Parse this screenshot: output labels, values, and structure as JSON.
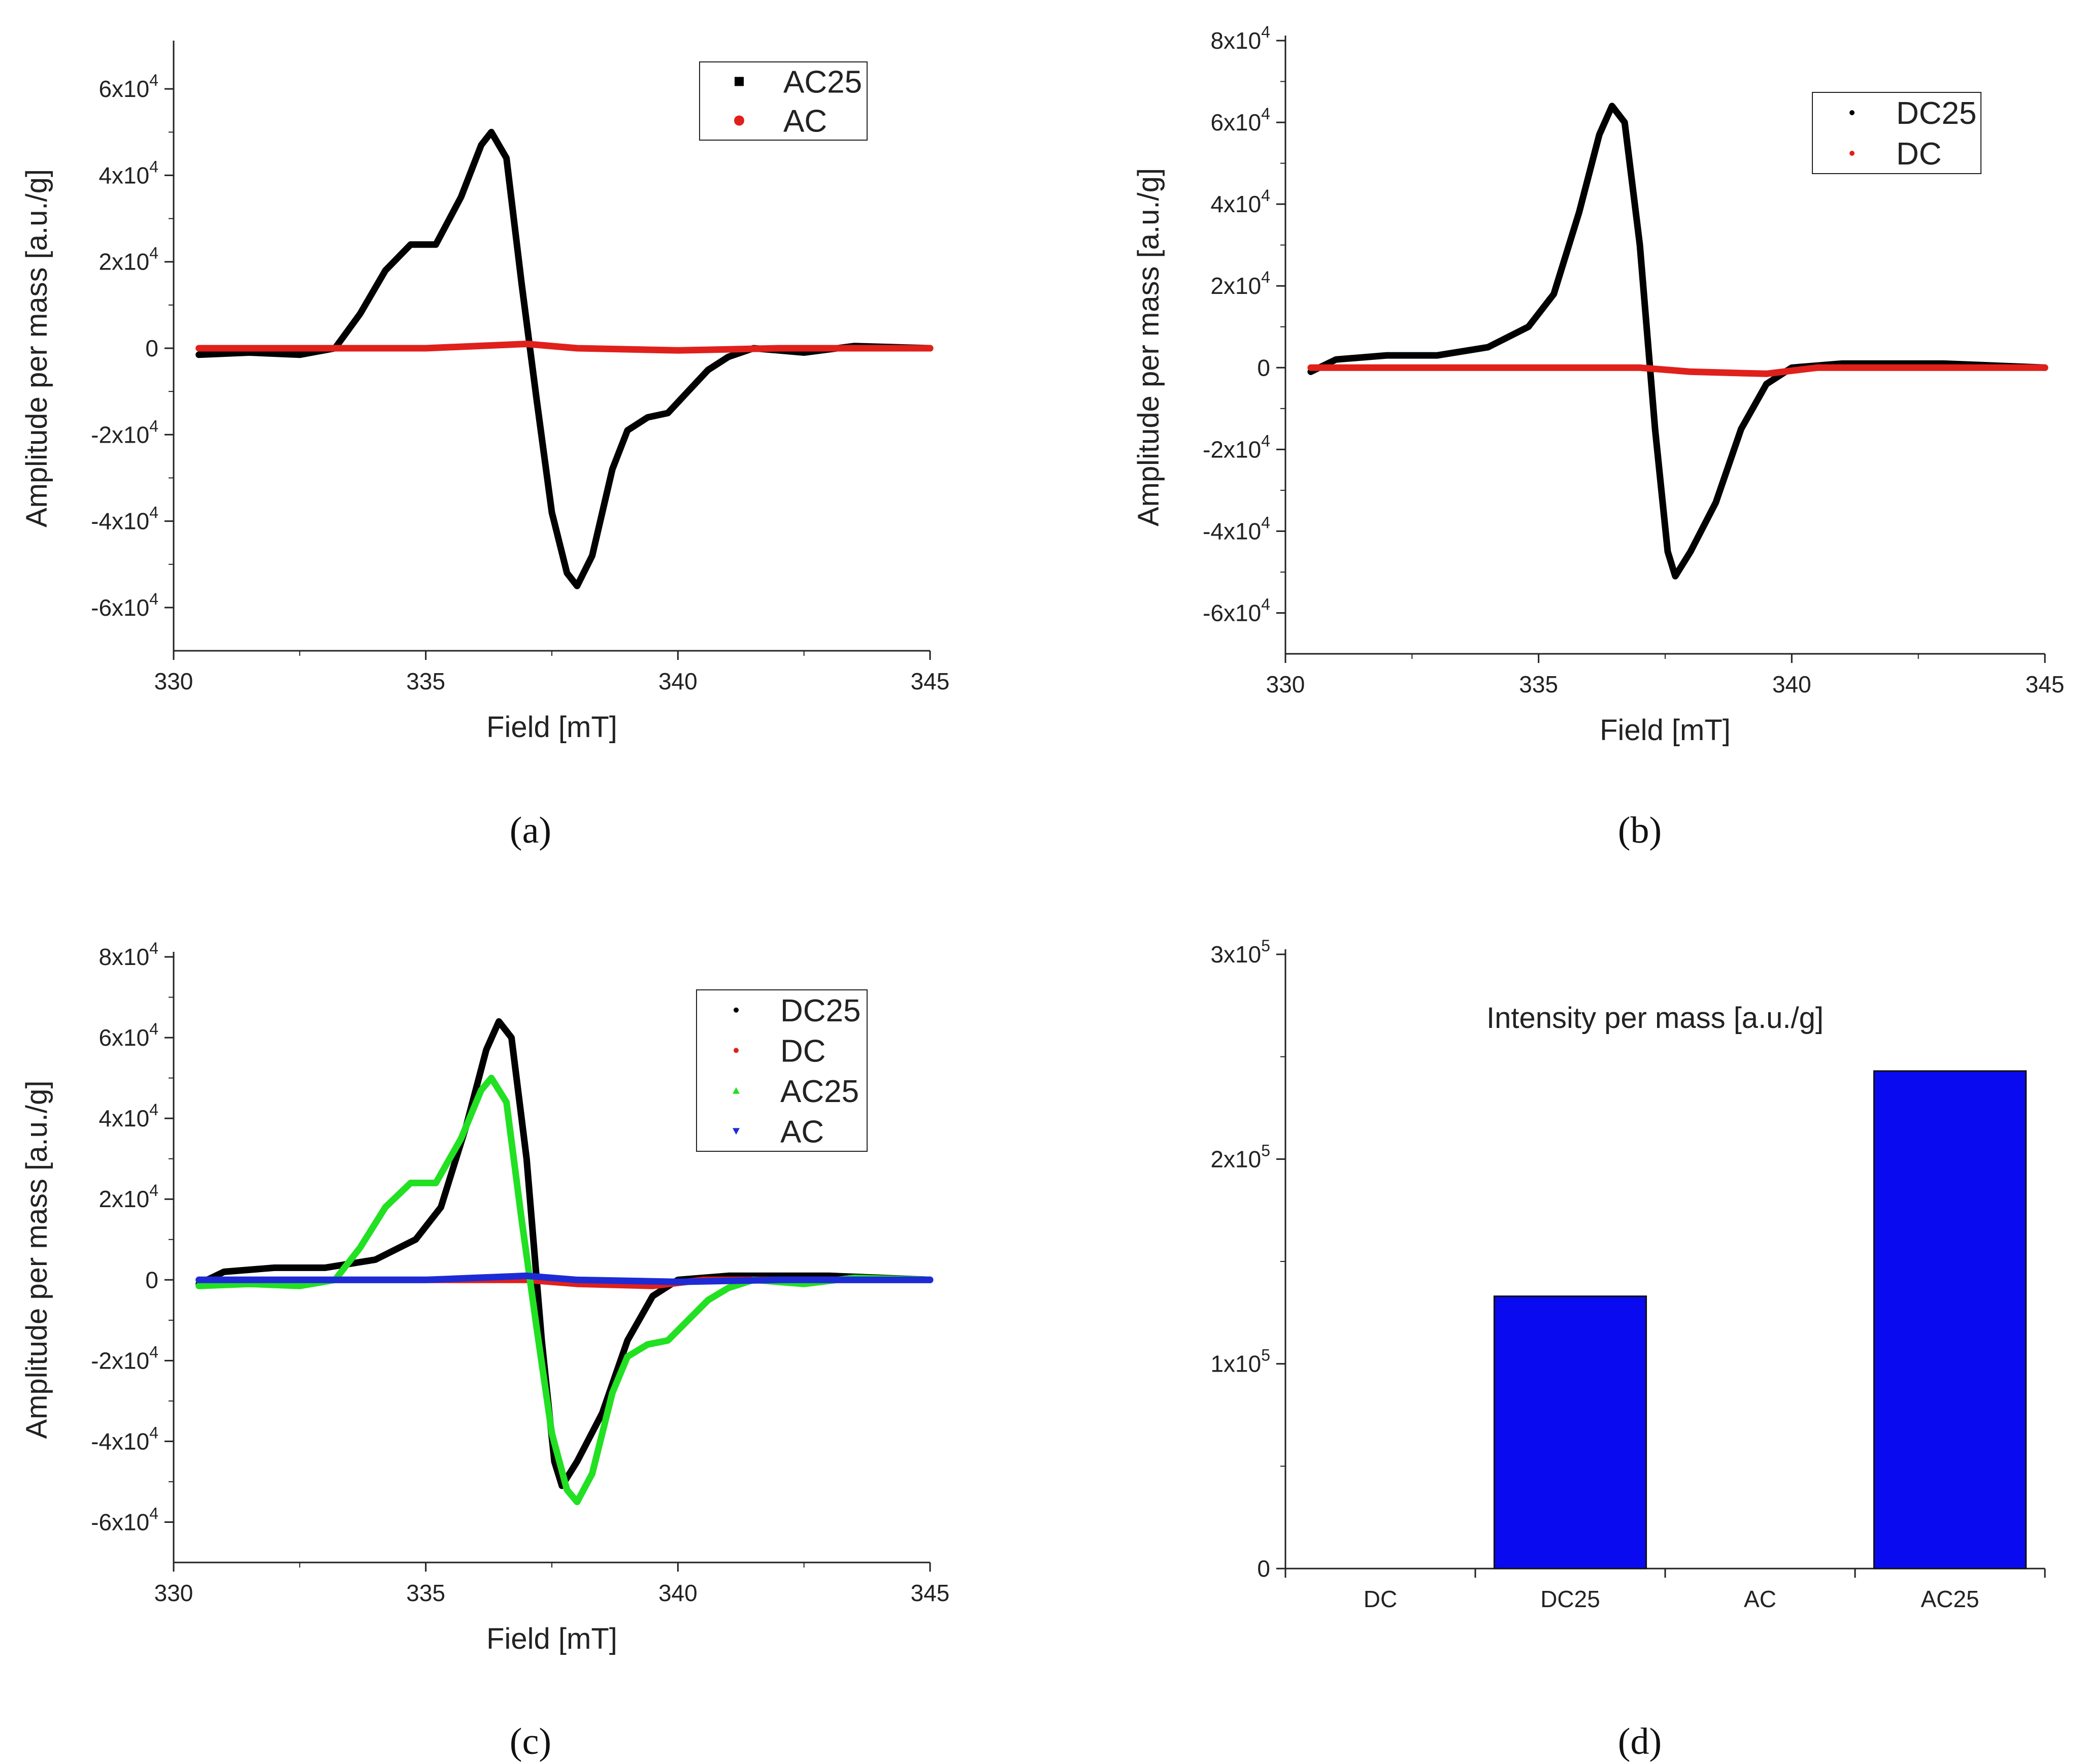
{
  "panels": [
    {
      "caption": "(a)",
      "chart_data": {
        "type": "line",
        "xlabel": "Field [mT]",
        "ylabel": "Amplitude per mass [a.u./g]",
        "xlim": [
          330,
          345
        ],
        "ylim": [
          -70000,
          70000
        ],
        "xticks": [
          "330",
          "335",
          "340",
          "345"
        ],
        "yticks": [
          {
            "value": 60000,
            "mant": "6x10",
            "exp": "4"
          },
          {
            "value": 40000,
            "mant": "4x10",
            "exp": "4"
          },
          {
            "value": 20000,
            "mant": "2x10",
            "exp": "4"
          },
          {
            "value": 0,
            "mant": "0",
            "exp": ""
          },
          {
            "value": -20000,
            "mant": "-2x10",
            "exp": "4"
          },
          {
            "value": -40000,
            "mant": "-4x10",
            "exp": "4"
          },
          {
            "value": -60000,
            "mant": "-6x10",
            "exp": "4"
          }
        ],
        "legend": "top-right",
        "series": [
          {
            "name": "AC25",
            "color": "#000000",
            "marker": "square",
            "points": [
              [
                330.5,
                -1500
              ],
              [
                331.5,
                -1000
              ],
              [
                332.5,
                -1500
              ],
              [
                333.2,
                0
              ],
              [
                333.7,
                8000
              ],
              [
                334.2,
                18000
              ],
              [
                334.7,
                24000
              ],
              [
                335.2,
                24000
              ],
              [
                335.7,
                35000
              ],
              [
                336.1,
                47000
              ],
              [
                336.3,
                50000
              ],
              [
                336.6,
                44000
              ],
              [
                336.9,
                15000
              ],
              [
                337.2,
                -12000
              ],
              [
                337.5,
                -38000
              ],
              [
                337.8,
                -52000
              ],
              [
                338.0,
                -55000
              ],
              [
                338.3,
                -48000
              ],
              [
                338.7,
                -28000
              ],
              [
                339.0,
                -19000
              ],
              [
                339.4,
                -16000
              ],
              [
                339.8,
                -15000
              ],
              [
                340.2,
                -10000
              ],
              [
                340.6,
                -5000
              ],
              [
                341.0,
                -2000
              ],
              [
                341.5,
                0
              ],
              [
                342.5,
                -1000
              ],
              [
                343.5,
                500
              ],
              [
                345,
                0
              ]
            ]
          },
          {
            "name": "AC",
            "color": "#e0201b",
            "marker": "circle",
            "points": [
              [
                330.5,
                0
              ],
              [
                333,
                0
              ],
              [
                335,
                0
              ],
              [
                336,
                500
              ],
              [
                337,
                1000
              ],
              [
                338,
                0
              ],
              [
                340,
                -500
              ],
              [
                342,
                0
              ],
              [
                345,
                0
              ]
            ]
          }
        ]
      }
    },
    {
      "caption": "(b)",
      "chart_data": {
        "type": "line",
        "xlabel": "Field [mT]",
        "ylabel": "Amplitude per mass [a.u./g]",
        "xlim": [
          330,
          345
        ],
        "ylim": [
          -70000,
          80000
        ],
        "xticks": [
          "330",
          "335",
          "340",
          "345"
        ],
        "yticks": [
          {
            "value": 80000,
            "mant": "8x10",
            "exp": "4"
          },
          {
            "value": 60000,
            "mant": "6x10",
            "exp": "4"
          },
          {
            "value": 40000,
            "mant": "4x10",
            "exp": "4"
          },
          {
            "value": 20000,
            "mant": "2x10",
            "exp": "4"
          },
          {
            "value": 0,
            "mant": "0",
            "exp": ""
          },
          {
            "value": -20000,
            "mant": "-2x10",
            "exp": "4"
          },
          {
            "value": -40000,
            "mant": "-4x10",
            "exp": "4"
          },
          {
            "value": -60000,
            "mant": "-6x10",
            "exp": "4"
          }
        ],
        "legend": "top-right",
        "series": [
          {
            "name": "DC25",
            "color": "#000000",
            "marker": "dot",
            "points": [
              [
                330.5,
                -1000
              ],
              [
                331,
                2000
              ],
              [
                332,
                3000
              ],
              [
                333,
                3000
              ],
              [
                334,
                5000
              ],
              [
                334.8,
                10000
              ],
              [
                335.3,
                18000
              ],
              [
                335.8,
                38000
              ],
              [
                336.2,
                57000
              ],
              [
                336.45,
                64000
              ],
              [
                336.7,
                60000
              ],
              [
                337.0,
                30000
              ],
              [
                337.3,
                -15000
              ],
              [
                337.55,
                -45000
              ],
              [
                337.7,
                -51000
              ],
              [
                338.0,
                -45000
              ],
              [
                338.5,
                -33000
              ],
              [
                339.0,
                -15000
              ],
              [
                339.5,
                -4000
              ],
              [
                340.0,
                0
              ],
              [
                341,
                1000
              ],
              [
                343,
                1000
              ],
              [
                345,
                0
              ]
            ]
          },
          {
            "name": "DC",
            "color": "#e0201b",
            "marker": "dot",
            "points": [
              [
                330.5,
                0
              ],
              [
                333,
                0
              ],
              [
                336,
                0
              ],
              [
                337,
                0
              ],
              [
                338,
                -1000
              ],
              [
                339.5,
                -1500
              ],
              [
                340.5,
                0
              ],
              [
                345,
                0
              ]
            ]
          }
        ]
      }
    },
    {
      "caption": "(c)",
      "chart_data": {
        "type": "line",
        "xlabel": "Field [mT]",
        "ylabel": "Amplitude per mass [a.u./g]",
        "xlim": [
          330,
          345
        ],
        "ylim": [
          -70000,
          80000
        ],
        "xticks": [
          "330",
          "335",
          "340",
          "345"
        ],
        "yticks": [
          {
            "value": 80000,
            "mant": "8x10",
            "exp": "4"
          },
          {
            "value": 60000,
            "mant": "6x10",
            "exp": "4"
          },
          {
            "value": 40000,
            "mant": "4x10",
            "exp": "4"
          },
          {
            "value": 20000,
            "mant": "2x10",
            "exp": "4"
          },
          {
            "value": 0,
            "mant": "0",
            "exp": ""
          },
          {
            "value": -20000,
            "mant": "-2x10",
            "exp": "4"
          },
          {
            "value": -40000,
            "mant": "-4x10",
            "exp": "4"
          },
          {
            "value": -60000,
            "mant": "-6x10",
            "exp": "4"
          }
        ],
        "legend": "top-right",
        "series": [
          {
            "name": "DC25",
            "color": "#000000",
            "marker": "dot",
            "points": [
              [
                330.5,
                -1000
              ],
              [
                331,
                2000
              ],
              [
                332,
                3000
              ],
              [
                333,
                3000
              ],
              [
                334,
                5000
              ],
              [
                334.8,
                10000
              ],
              [
                335.3,
                18000
              ],
              [
                335.8,
                38000
              ],
              [
                336.2,
                57000
              ],
              [
                336.45,
                64000
              ],
              [
                336.7,
                60000
              ],
              [
                337.0,
                30000
              ],
              [
                337.3,
                -15000
              ],
              [
                337.55,
                -45000
              ],
              [
                337.7,
                -51000
              ],
              [
                338.0,
                -45000
              ],
              [
                338.5,
                -33000
              ],
              [
                339.0,
                -15000
              ],
              [
                339.5,
                -4000
              ],
              [
                340.0,
                0
              ],
              [
                341,
                1000
              ],
              [
                343,
                1000
              ],
              [
                345,
                0
              ]
            ]
          },
          {
            "name": "DC",
            "color": "#e0201b",
            "marker": "dot",
            "points": [
              [
                330.5,
                0
              ],
              [
                333,
                0
              ],
              [
                336,
                0
              ],
              [
                337,
                0
              ],
              [
                338,
                -1000
              ],
              [
                339.5,
                -1500
              ],
              [
                340.5,
                0
              ],
              [
                345,
                0
              ]
            ]
          },
          {
            "name": "AC25",
            "color": "#22e022",
            "marker": "triangle-up",
            "points": [
              [
                330.5,
                -1500
              ],
              [
                331.5,
                -1000
              ],
              [
                332.5,
                -1500
              ],
              [
                333.2,
                0
              ],
              [
                333.7,
                8000
              ],
              [
                334.2,
                18000
              ],
              [
                334.7,
                24000
              ],
              [
                335.2,
                24000
              ],
              [
                335.7,
                35000
              ],
              [
                336.1,
                47000
              ],
              [
                336.3,
                50000
              ],
              [
                336.6,
                44000
              ],
              [
                336.9,
                15000
              ],
              [
                337.2,
                -12000
              ],
              [
                337.5,
                -38000
              ],
              [
                337.8,
                -52000
              ],
              [
                338.0,
                -55000
              ],
              [
                338.3,
                -48000
              ],
              [
                338.7,
                -28000
              ],
              [
                339.0,
                -19000
              ],
              [
                339.4,
                -16000
              ],
              [
                339.8,
                -15000
              ],
              [
                340.2,
                -10000
              ],
              [
                340.6,
                -5000
              ],
              [
                341.0,
                -2000
              ],
              [
                341.5,
                0
              ],
              [
                342.5,
                -1000
              ],
              [
                343.5,
                500
              ],
              [
                345,
                0
              ]
            ]
          },
          {
            "name": "AC",
            "color": "#1d2bd6",
            "marker": "triangle-down",
            "points": [
              [
                330.5,
                0
              ],
              [
                333,
                0
              ],
              [
                335,
                0
              ],
              [
                336,
                500
              ],
              [
                337,
                1000
              ],
              [
                338,
                0
              ],
              [
                340,
                -500
              ],
              [
                342,
                0
              ],
              [
                345,
                0
              ]
            ]
          }
        ]
      }
    },
    {
      "caption": "(d)",
      "chart_data": {
        "type": "bar",
        "title": "Intensity per mass [a.u./g]",
        "categories": [
          "DC",
          "DC25",
          "AC",
          "AC25"
        ],
        "values": [
          0,
          133000,
          0,
          243000
        ],
        "ylim": [
          0,
          300000
        ],
        "color": "#0a0af0",
        "yticks": [
          {
            "value": 300000,
            "mant": "3x10",
            "exp": "5"
          },
          {
            "value": 200000,
            "mant": "2x10",
            "exp": "5"
          },
          {
            "value": 100000,
            "mant": "1x10",
            "exp": "5"
          },
          {
            "value": 0,
            "mant": "0",
            "exp": ""
          }
        ]
      }
    }
  ]
}
